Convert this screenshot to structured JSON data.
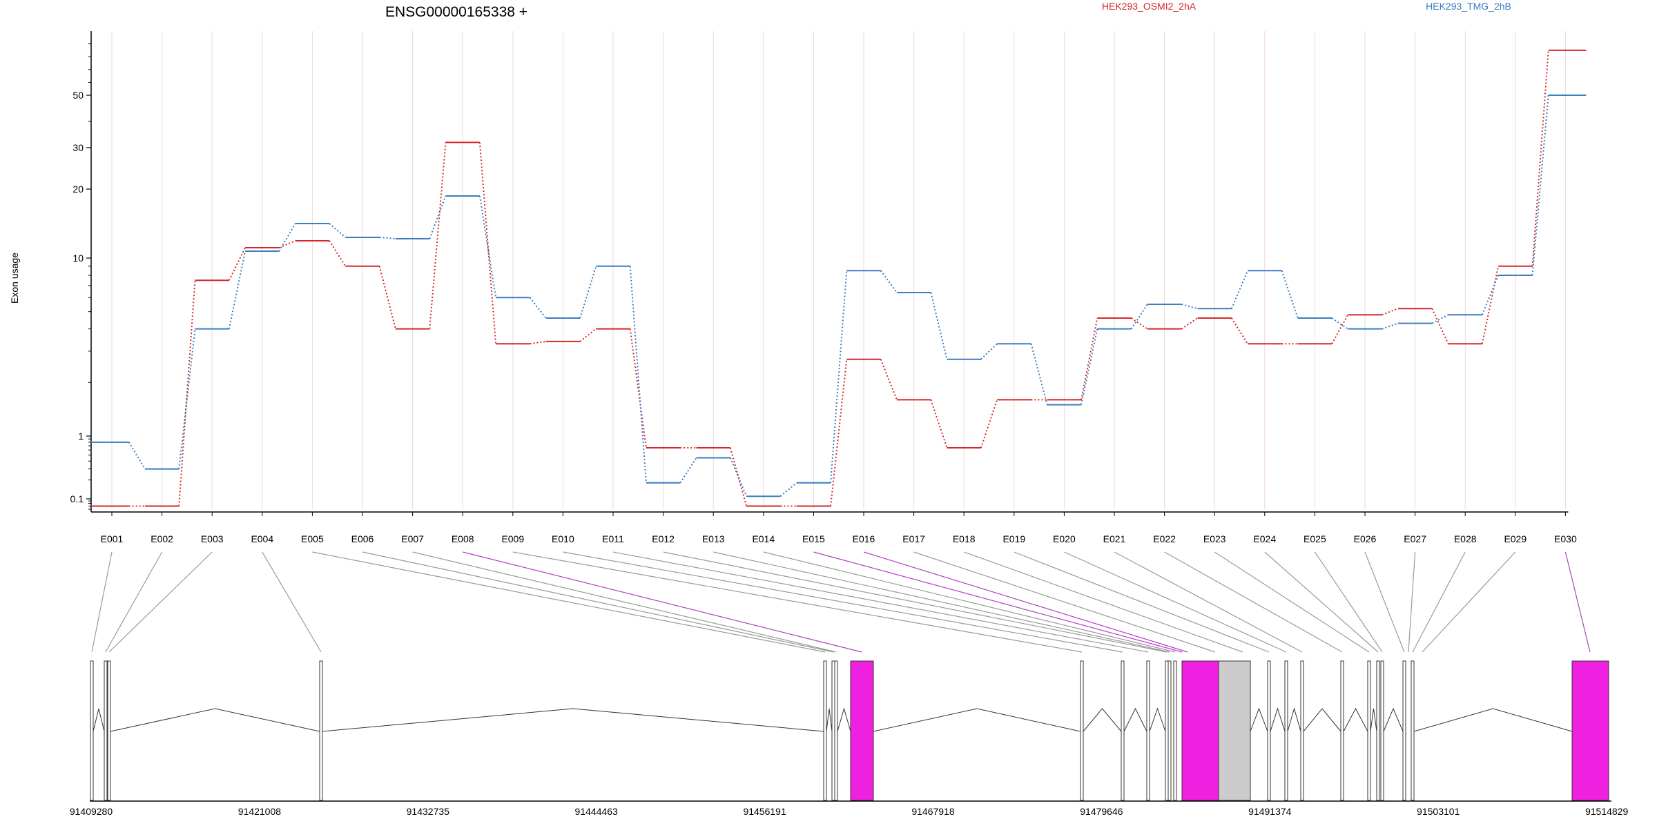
{
  "chart_data": {
    "type": "line",
    "title": "ENSG00000165338 +",
    "ylabel": "Exon usage",
    "ylim": [
      0.06,
      100
    ],
    "yscale": "log-like",
    "yticks": [
      "0.1",
      "1",
      "10",
      "20",
      "30",
      "50"
    ],
    "categories": [
      "E001",
      "E002",
      "E003",
      "E004",
      "E005",
      "E006",
      "E007",
      "E008",
      "E009",
      "E010",
      "E011",
      "E012",
      "E013",
      "E014",
      "E015",
      "E016",
      "E017",
      "E018",
      "E019",
      "E020",
      "E021",
      "E022",
      "E023",
      "E024",
      "E025",
      "E026",
      "E027",
      "E028",
      "E029",
      "E030"
    ],
    "series": [
      {
        "name": "HEK293_OSMI2_2hA",
        "color": "#d62728",
        "values": [
          0.07,
          0.07,
          7.5,
          11.5,
          12.5,
          9,
          4,
          32,
          3.3,
          3.4,
          4,
          0.65,
          0.65,
          0.07,
          0.07,
          2.7,
          1.6,
          0.65,
          1.6,
          1.6,
          4.6,
          4,
          4.6,
          3.3,
          3.3,
          4.8,
          5.2,
          3.3,
          9,
          85
        ]
      },
      {
        "name": "HEK293_TMG_2hB",
        "color": "#3a7dc0",
        "values": [
          0.8,
          0.3,
          4,
          11,
          15,
          13,
          12.8,
          19,
          6,
          4.6,
          9,
          0.18,
          0.45,
          0.11,
          0.18,
          8.5,
          6.4,
          2.7,
          3.3,
          1.5,
          4,
          5.5,
          5.2,
          8.5,
          4.6,
          4,
          4.3,
          4.8,
          8,
          50
        ]
      }
    ],
    "gene_model": {
      "coordinate_labels": [
        "91409280",
        "91421008",
        "91432735",
        "91444463",
        "91456191",
        "91467918",
        "91479646",
        "91491374",
        "91503101",
        "91514829"
      ],
      "highlight_color": "#f020e0",
      "neutral_color": "#cccccc"
    }
  }
}
